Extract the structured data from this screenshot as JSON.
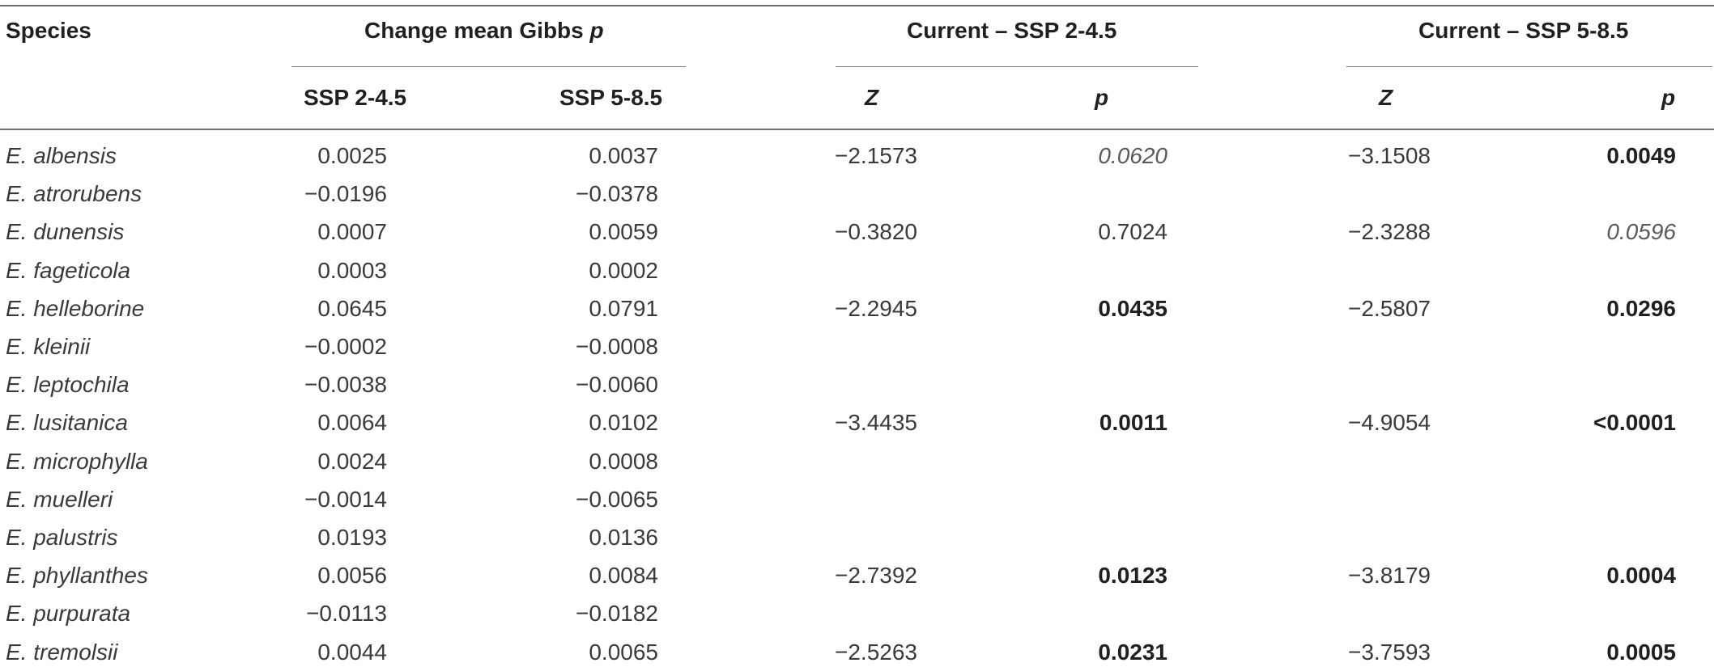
{
  "headers": {
    "species": "Species",
    "change_group": "Change mean Gibbs",
    "change_group_var": "p",
    "ssp245_group": "Current – SSP 2-4.5",
    "ssp585_group": "Current – SSP 5-8.5",
    "sub_ssp245": "SSP 2-4.5",
    "sub_ssp585": "SSP 5-8.5",
    "z1": "Z",
    "p1": "p",
    "z2": "Z",
    "p2": "p"
  },
  "rows": [
    {
      "species": "E. albensis",
      "ch245": "0.0025",
      "ch585": "0.0037",
      "z1": "−2.1573",
      "p1": "0.0620",
      "p1_style": "italic",
      "z2": "−3.1508",
      "p2": "0.0049",
      "p2_style": "bold"
    },
    {
      "species": "E. atrorubens",
      "ch245": "−0.0196",
      "ch585": "−0.0378",
      "z1": "",
      "p1": "",
      "p1_style": "",
      "z2": "",
      "p2": "",
      "p2_style": ""
    },
    {
      "species": "E. dunensis",
      "ch245": "0.0007",
      "ch585": "0.0059",
      "z1": "−0.3820",
      "p1": "0.7024",
      "p1_style": "",
      "z2": "−2.3288",
      "p2": "0.0596",
      "p2_style": "italic"
    },
    {
      "species": "E. fageticola",
      "ch245": "0.0003",
      "ch585": "0.0002",
      "z1": "",
      "p1": "",
      "p1_style": "",
      "z2": "",
      "p2": "",
      "p2_style": ""
    },
    {
      "species": "E. helleborine",
      "ch245": "0.0645",
      "ch585": "0.0791",
      "z1": "−2.2945",
      "p1": "0.0435",
      "p1_style": "bold",
      "z2": "−2.5807",
      "p2": "0.0296",
      "p2_style": "bold"
    },
    {
      "species": "E. kleinii",
      "ch245": "−0.0002",
      "ch585": "−0.0008",
      "z1": "",
      "p1": "",
      "p1_style": "",
      "z2": "",
      "p2": "",
      "p2_style": ""
    },
    {
      "species": "E. leptochila",
      "ch245": "−0.0038",
      "ch585": "−0.0060",
      "z1": "",
      "p1": "",
      "p1_style": "",
      "z2": "",
      "p2": "",
      "p2_style": ""
    },
    {
      "species": "E. lusitanica",
      "ch245": "0.0064",
      "ch585": "0.0102",
      "z1": "−3.4435",
      "p1": "0.0011",
      "p1_style": "bold",
      "z2": "−4.9054",
      "p2": "<0.0001",
      "p2_style": "bold"
    },
    {
      "species": "E. microphylla",
      "ch245": "0.0024",
      "ch585": "0.0008",
      "z1": "",
      "p1": "",
      "p1_style": "",
      "z2": "",
      "p2": "",
      "p2_style": ""
    },
    {
      "species": "E. muelleri",
      "ch245": "−0.0014",
      "ch585": "−0.0065",
      "z1": "",
      "p1": "",
      "p1_style": "",
      "z2": "",
      "p2": "",
      "p2_style": ""
    },
    {
      "species": "E. palustris",
      "ch245": "0.0193",
      "ch585": "0.0136",
      "z1": "",
      "p1": "",
      "p1_style": "",
      "z2": "",
      "p2": "",
      "p2_style": ""
    },
    {
      "species": "E. phyllanthes",
      "ch245": "0.0056",
      "ch585": "0.0084",
      "z1": "−2.7392",
      "p1": "0.0123",
      "p1_style": "bold",
      "z2": "−3.8179",
      "p2": "0.0004",
      "p2_style": "bold"
    },
    {
      "species": "E. purpurata",
      "ch245": "−0.0113",
      "ch585": "−0.0182",
      "z1": "",
      "p1": "",
      "p1_style": "",
      "z2": "",
      "p2": "",
      "p2_style": ""
    },
    {
      "species": "E. tremolsii",
      "ch245": "0.0044",
      "ch585": "0.0065",
      "z1": "−2.5263",
      "p1": "0.0231",
      "p1_style": "bold",
      "z2": "−3.7593",
      "p2": "0.0005",
      "p2_style": "bold"
    }
  ]
}
